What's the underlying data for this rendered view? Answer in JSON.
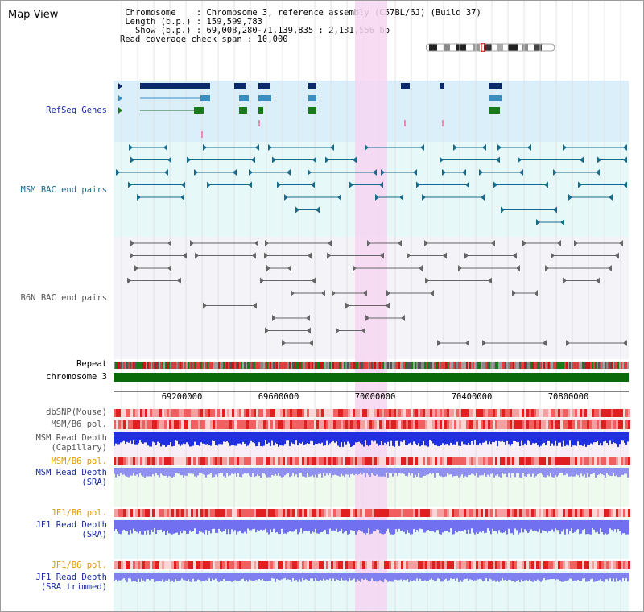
{
  "title": "Map View",
  "header": {
    "line1": " Chromosome    : Chromosome 3, reference assembly (C57BL/6J) (Build 37)",
    "line2": " Length (b.p.) : 159,599,783",
    "line3": "   Show (b.p.) : 69,008,280-71,139,835 : 2,131,556 bp",
    "line4": "Read coverage check span : 10,000"
  },
  "tracks": {
    "refseq": "RefSeq Genes",
    "msm_bac": "MSM BAC end pairs",
    "b6n_bac": "B6N BAC end pairs",
    "repeat": "Repeat",
    "chromosome": "chromosome 3",
    "dbsnp": "dbSNP(Mouse)",
    "msm_pol1": "MSM/B6 pol.",
    "msm_depth_cap1": "MSM Read Depth",
    "msm_depth_cap2": "(Capillary)",
    "msm_pol2": "MSM/B6 pol.",
    "msm_depth_sra1": "MSM Read Depth",
    "msm_depth_sra2": "(SRA)",
    "jf1_pol1": "JF1/B6 pol.",
    "jf1_depth_sra1": "JF1 Read Depth",
    "jf1_depth_sra2": "(SRA)",
    "jf1_pol2": "JF1/B6 pol.",
    "jf1_depth_trim1": "JF1 Read Depth",
    "jf1_depth_trim2": "(SRA trimmed)"
  },
  "axis": {
    "ticks": [
      "69200000",
      "69600000",
      "70000000",
      "70400000",
      "70800000"
    ]
  },
  "colors": {
    "refseq_bg": "#dbeffa",
    "msm_bg": "#e6f8f8",
    "b6n_bg": "#f3f3f8",
    "highlight": "#f6d6f2",
    "refseq_dark": "#0a2a6a",
    "refseq_mid": "#3a8fc0",
    "refseq_green": "#1a7a1a",
    "msm_line": "#1a6a8a",
    "b6n_line": "#666666",
    "chromosome": "#0a6a0a",
    "label_blue": "#1a2aa0",
    "label_teal": "#1a6a8a",
    "label_orange": "#e09a00",
    "label_gray": "#555555"
  }
}
